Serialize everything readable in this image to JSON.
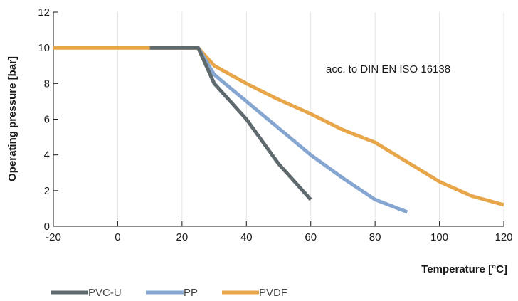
{
  "chart_data": {
    "type": "line",
    "title": "",
    "xlabel": "Temperature [°C]",
    "ylabel": "Operating pressure [bar]",
    "annotation": "acc. to DIN EN ISO 16138",
    "xlim": [
      -20,
      120
    ],
    "ylim": [
      0,
      12
    ],
    "xticks": [
      -20,
      0,
      20,
      40,
      60,
      80,
      100,
      120
    ],
    "yticks": [
      0,
      2,
      4,
      6,
      8,
      10,
      12
    ],
    "grid": "vertical",
    "legend_position": "bottom-left",
    "series": [
      {
        "name": "PVC-U",
        "color": "#5f6a6f",
        "points": [
          [
            10,
            10
          ],
          [
            25,
            10
          ],
          [
            30,
            8
          ],
          [
            40,
            6
          ],
          [
            50,
            3.5
          ],
          [
            60,
            1.5
          ]
        ]
      },
      {
        "name": "PP",
        "color": "#86a6d2",
        "points": [
          [
            25,
            10
          ],
          [
            30,
            8.5
          ],
          [
            40,
            7
          ],
          [
            50,
            5.5
          ],
          [
            60,
            4
          ],
          [
            70,
            2.7
          ],
          [
            80,
            1.5
          ],
          [
            90,
            0.8
          ]
        ]
      },
      {
        "name": "PVDF",
        "color": "#e8a64a",
        "points": [
          [
            -20,
            10
          ],
          [
            25,
            10
          ],
          [
            30,
            9
          ],
          [
            40,
            8
          ],
          [
            50,
            7.1
          ],
          [
            60,
            6.3
          ],
          [
            70,
            5.4
          ],
          [
            80,
            4.7
          ],
          [
            90,
            3.6
          ],
          [
            100,
            2.5
          ],
          [
            110,
            1.7
          ],
          [
            120,
            1.2
          ]
        ]
      }
    ]
  }
}
